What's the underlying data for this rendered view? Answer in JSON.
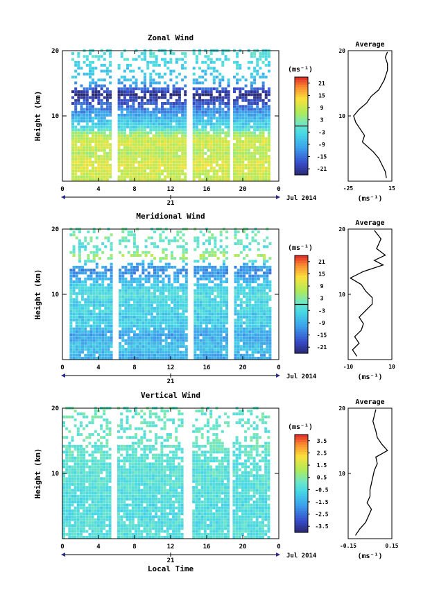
{
  "chart_data": [
    {
      "type": "heatmap",
      "title": "Zonal Wind",
      "ylabel": "Height (km)",
      "xlabel": "",
      "xlim": [
        0,
        24
      ],
      "ylim": [
        0,
        20
      ],
      "x_ticks": [
        "0",
        "4",
        "8",
        "12",
        "16",
        "20",
        "0"
      ],
      "y_ticks": [
        "10",
        "20"
      ],
      "date_day": "21",
      "date_month": "Jul 2014",
      "colorbar": {
        "unit": "(ms⁻¹)",
        "min": -24,
        "max": 24,
        "ticks": [
          "21",
          "15",
          "9",
          "3",
          "-3",
          "-9",
          "-15",
          "-21"
        ],
        "contour_level": 0
      },
      "data_gaps_hours": [
        [
          5.4,
          6.0
        ],
        [
          13.8,
          14.3
        ],
        [
          18.3,
          18.8
        ]
      ],
      "coverage_hours": [
        1.0,
        23.0
      ],
      "layers": [
        {
          "height_km": 19.0,
          "wind": -2
        },
        {
          "height_km": 17.5,
          "wind": -4
        },
        {
          "height_km": 16.0,
          "wind": -6
        },
        {
          "height_km": 15.0,
          "wind": -8
        },
        {
          "height_km": 13.0,
          "wind": -24
        },
        {
          "height_km": 12.0,
          "wind": -18
        },
        {
          "height_km": 11.0,
          "wind": -14
        },
        {
          "height_km": 10.0,
          "wind": -10
        },
        {
          "height_km": 9.0,
          "wind": -6
        },
        {
          "height_km": 8.0,
          "wind": -3
        },
        {
          "height_km": 7.0,
          "wind": 6
        },
        {
          "height_km": 6.0,
          "wind": 10
        },
        {
          "height_km": 5.0,
          "wind": 9
        },
        {
          "height_km": 4.0,
          "wind": 7
        },
        {
          "height_km": 3.0,
          "wind": 10
        },
        {
          "height_km": 2.0,
          "wind": 11
        },
        {
          "height_km": 1.0,
          "wind": 9
        }
      ],
      "average": {
        "title": "Average",
        "xlabel": "(ms⁻¹)",
        "xlim": [
          -25,
          15
        ],
        "x_ticks": [
          "-25",
          "15"
        ],
        "y_ticks": [
          "10",
          "20"
        ],
        "x": [
          10,
          9,
          6,
          3,
          -2,
          -12,
          -10,
          -14,
          -18,
          -20,
          -15,
          -8,
          -4,
          3,
          8,
          11,
          11,
          9,
          11
        ],
        "y": [
          0.5,
          1.5,
          2.5,
          3.5,
          4.5,
          6.0,
          7.0,
          8.0,
          9.0,
          10.0,
          11.0,
          12.0,
          13.0,
          14.0,
          15.5,
          17.0,
          18.0,
          19.0,
          19.8
        ]
      }
    },
    {
      "type": "heatmap",
      "title": "Meridional Wind",
      "ylabel": "Height (km)",
      "xlabel": "",
      "xlim": [
        0,
        24
      ],
      "ylim": [
        0,
        20
      ],
      "x_ticks": [
        "0",
        "4",
        "8",
        "12",
        "16",
        "20",
        "0"
      ],
      "y_ticks": [
        "10",
        "20"
      ],
      "date_day": "21",
      "date_month": "Jul 2014",
      "colorbar": {
        "unit": "(ms⁻¹)",
        "min": -24,
        "max": 24,
        "ticks": [
          "21",
          "15",
          "9",
          "3",
          "-3",
          "-9",
          "-15",
          "-21"
        ],
        "contour_level": 0
      },
      "data_gaps_hours": [
        [
          5.4,
          6.0
        ],
        [
          13.8,
          14.3
        ],
        [
          18.3,
          18.8
        ]
      ],
      "coverage_hours": [
        0.8,
        23.0
      ],
      "layers": [
        {
          "height_km": 18.5,
          "wind": 2
        },
        {
          "height_km": 17.0,
          "wind": -2
        },
        {
          "height_km": 15.5,
          "wind": 8
        },
        {
          "height_km": 14.5,
          "wind": -8
        },
        {
          "height_km": 13.5,
          "wind": -12
        },
        {
          "height_km": 12.5,
          "wind": -10
        },
        {
          "height_km": 11.5,
          "wind": -6
        },
        {
          "height_km": 10.5,
          "wind": -4
        },
        {
          "height_km": 9.5,
          "wind": -2
        },
        {
          "height_km": 8.5,
          "wind": -5
        },
        {
          "height_km": 7.5,
          "wind": -3
        },
        {
          "height_km": 6.5,
          "wind": -6
        },
        {
          "height_km": 5.5,
          "wind": -4
        },
        {
          "height_km": 4.5,
          "wind": -7
        },
        {
          "height_km": 3.5,
          "wind": -10
        },
        {
          "height_km": 2.5,
          "wind": -8
        },
        {
          "height_km": 1.5,
          "wind": -6
        },
        {
          "height_km": 0.5,
          "wind": -9
        }
      ],
      "average": {
        "title": "Average",
        "xlabel": "(ms⁻¹)",
        "xlim": [
          -10,
          10
        ],
        "x_ticks": [
          "-10",
          "10"
        ],
        "y_ticks": [
          "10",
          "20"
        ],
        "x": [
          -6,
          -8,
          -5,
          -7,
          -4,
          -3,
          -5,
          -2,
          1,
          1,
          -2,
          -4,
          -9,
          -3,
          6,
          2,
          7,
          3,
          5,
          2
        ],
        "y": [
          0.5,
          1.5,
          2.5,
          3.5,
          4.5,
          5.5,
          6.5,
          7.5,
          8.5,
          9.5,
          10.5,
          11.5,
          12.5,
          13.5,
          14.5,
          15.2,
          16.0,
          17.0,
          18.5,
          19.8
        ]
      }
    },
    {
      "type": "heatmap",
      "title": "Vertical Wind",
      "ylabel": "Height (km)",
      "xlabel": "Local Time",
      "xlim": [
        0,
        24
      ],
      "ylim": [
        0,
        20
      ],
      "x_ticks": [
        "0",
        "4",
        "8",
        "12",
        "16",
        "20",
        "0"
      ],
      "y_ticks": [
        "10",
        "20"
      ],
      "date_day": "21",
      "date_month": "Jul 2014",
      "colorbar": {
        "unit": "(ms⁻¹)",
        "min": -4,
        "max": 4,
        "ticks": [
          "3.5",
          "2.5",
          "1.5",
          "0.5",
          "-0.5",
          "-1.5",
          "-2.5",
          "-3.5"
        ]
      },
      "data_gaps_hours": [
        [
          5.4,
          5.9
        ],
        [
          13.2,
          14.3
        ],
        [
          18.3,
          18.7
        ]
      ],
      "coverage_hours": [
        0.0,
        23.0
      ],
      "layers": [
        {
          "height_km": 19.0,
          "wind": 0.1
        },
        {
          "height_km": 17.0,
          "wind": 0.0
        },
        {
          "height_km": 15.0,
          "wind": 0.1
        },
        {
          "height_km": 13.0,
          "wind": -0.1
        },
        {
          "height_km": 11.0,
          "wind": -0.2
        },
        {
          "height_km": 9.0,
          "wind": -0.2
        },
        {
          "height_km": 7.0,
          "wind": -0.3
        },
        {
          "height_km": 5.0,
          "wind": -0.4
        },
        {
          "height_km": 3.0,
          "wind": -0.4
        },
        {
          "height_km": 1.0,
          "wind": -0.3
        }
      ],
      "average": {
        "title": "Average",
        "xlabel": "(ms⁻¹)",
        "xlim": [
          -0.15,
          0.15
        ],
        "x_ticks": [
          "-0.15",
          "0.15"
        ],
        "y_ticks": [
          "10",
          "20"
        ],
        "x": [
          -0.1,
          -0.07,
          -0.03,
          -0.01,
          0.01,
          -0.02,
          0.0,
          0.0,
          0.01,
          0.02,
          0.03,
          0.05,
          0.04,
          0.12,
          0.08,
          0.05,
          0.04,
          0.02,
          0.04
        ],
        "y": [
          0.5,
          1.5,
          2.5,
          3.5,
          4.5,
          5.5,
          6.5,
          7.5,
          8.5,
          9.5,
          10.5,
          11.5,
          12.5,
          13.5,
          14.5,
          15.5,
          16.5,
          18.0,
          19.8
        ]
      }
    }
  ]
}
